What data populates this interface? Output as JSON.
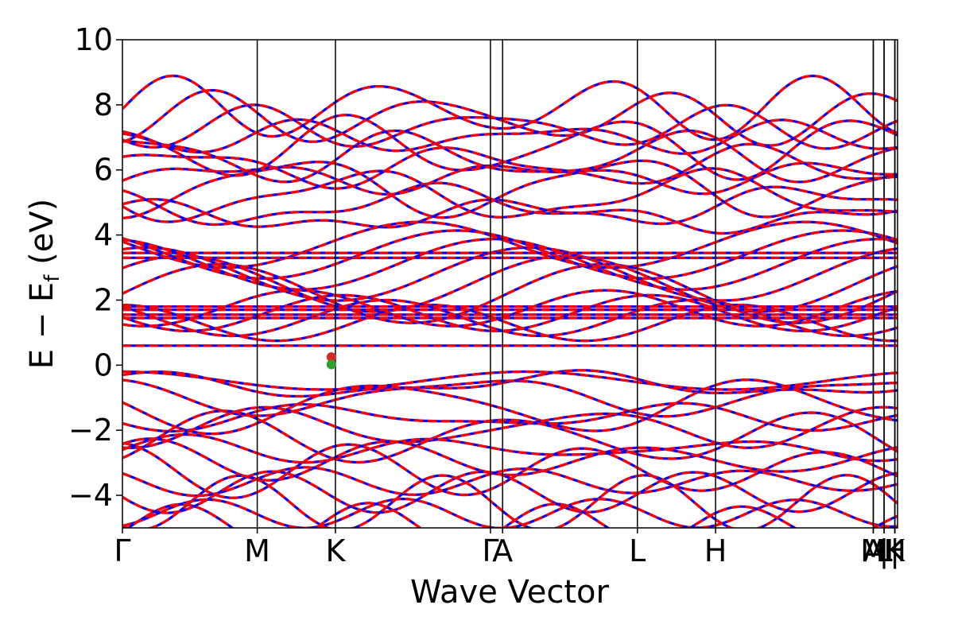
{
  "chart_data": {
    "type": "line",
    "title": "",
    "xlabel": "Wave Vector",
    "ylabel_main": "E − E",
    "ylabel_sub": "f",
    "ylabel_unit": " (eV)",
    "ylim": [
      -5,
      10
    ],
    "yticks": [
      {
        "value": 10,
        "label": "10"
      },
      {
        "value": 8,
        "label": "8"
      },
      {
        "value": 6,
        "label": "6"
      },
      {
        "value": 4,
        "label": "4"
      },
      {
        "value": 2,
        "label": "2"
      },
      {
        "value": 0,
        "label": "0"
      },
      {
        "value": -2,
        "label": "−2"
      },
      {
        "value": -4,
        "label": "−4"
      }
    ],
    "xlim": [
      0,
      5.75
    ],
    "kpoints": [
      {
        "label": "Γ",
        "x": 0.0
      },
      {
        "label": "M",
        "x": 1.0
      },
      {
        "label": "K",
        "x": 1.58
      },
      {
        "label": "Γ",
        "x": 2.73
      },
      {
        "label": "A",
        "x": 2.82
      },
      {
        "label": "L",
        "x": 3.82
      },
      {
        "label": "H",
        "x": 4.4
      },
      {
        "label": "A",
        "x": 5.57
      },
      {
        "label": "M",
        "x": 5.57
      },
      {
        "label": "|",
        "x": 5.65
      },
      {
        "label": "L",
        "x": 5.65
      },
      {
        "label": "|",
        "x": 5.73
      },
      {
        "label": "K",
        "x": 5.73
      },
      {
        "label": "H",
        "x": 5.73
      }
    ],
    "grid": false,
    "legend": "none",
    "series": [
      {
        "style": "solid",
        "color": "#0000ff"
      },
      {
        "style": "dashed",
        "color": "#ff0000"
      }
    ],
    "flat_bands": [
      0.6,
      1.45,
      1.55,
      1.7,
      1.8,
      3.3,
      3.45
    ],
    "points": [
      {
        "x": 1.55,
        "y": 0.25,
        "color": "#d62728"
      },
      {
        "x": 1.55,
        "y": 0.02,
        "color": "#2ca02c"
      }
    ]
  }
}
